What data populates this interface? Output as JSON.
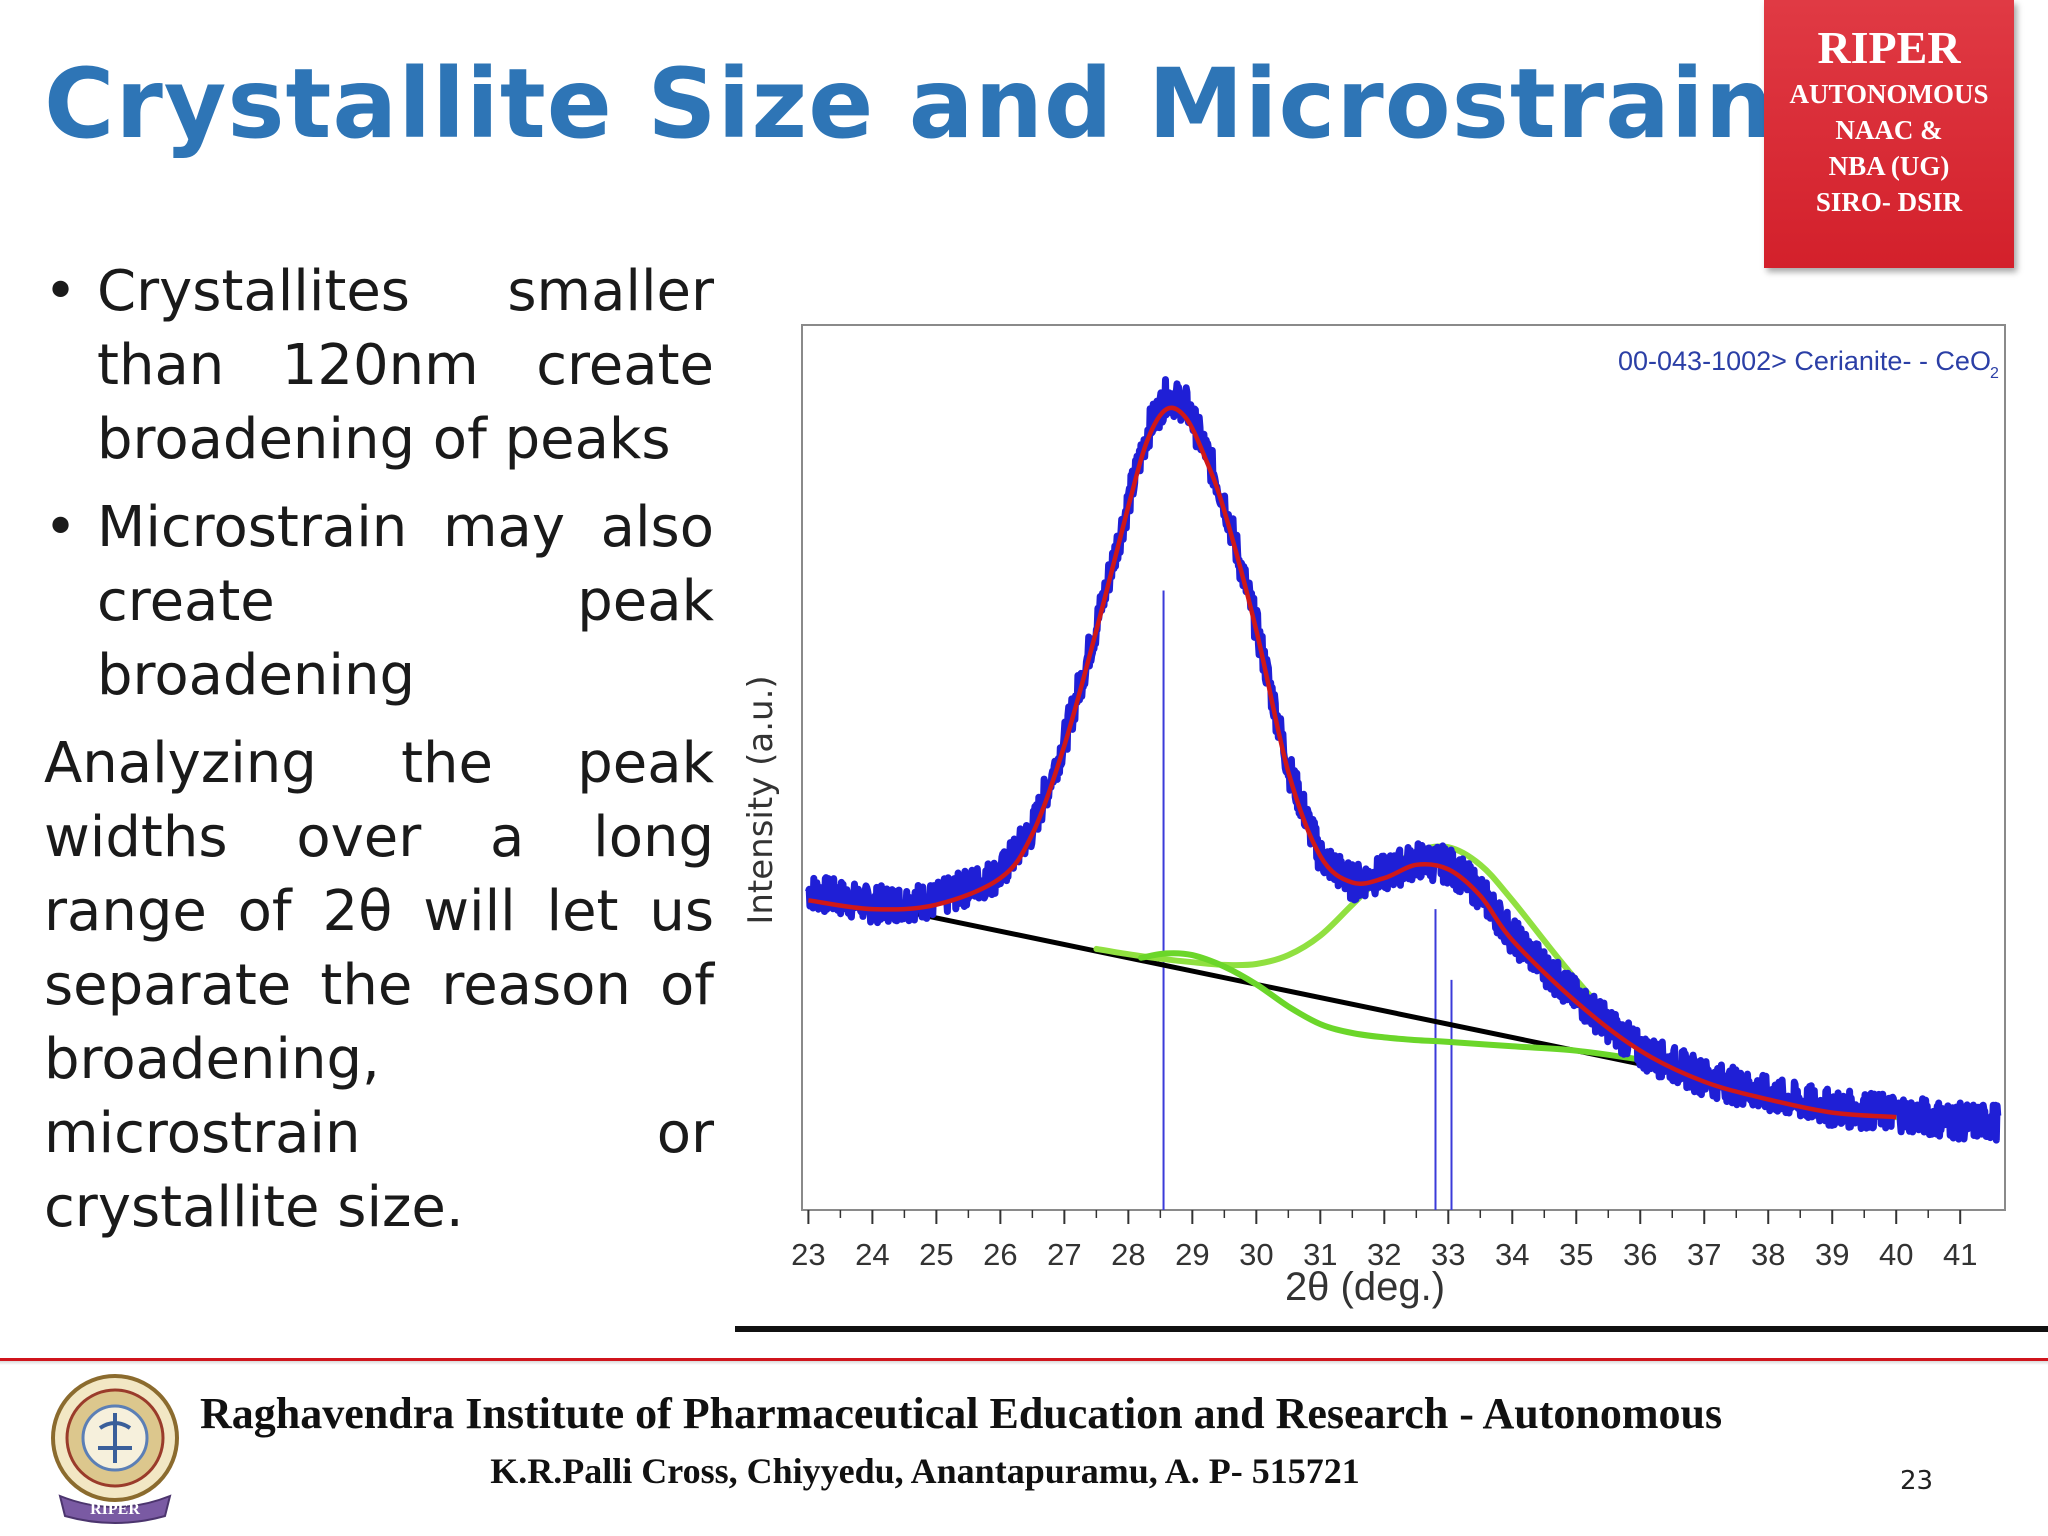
{
  "slide": {
    "title": "Crystallite Size and Microstrain",
    "badge": {
      "title": "RIPER",
      "lines": [
        "AUTONOMOUS",
        "NAAC &",
        "NBA (UG)",
        "SIRO- DSIR"
      ]
    },
    "bullets": [
      "Crystallites smaller than 120nm create broadening of peaks",
      "Microstrain may also create peak broadening"
    ],
    "paragraph": "Analyzing the peak widths over a long range of 2θ will let us separate the reason of broadening, microstrain or crystallite size.",
    "bullet_symbol": "•"
  },
  "chart_data": {
    "type": "line",
    "xlabel": "2θ (deg.)",
    "ylabel": "Intensity (a.u.)",
    "xlim": [
      22.9,
      41.7
    ],
    "ylim": [
      0,
      100
    ],
    "xticks": [
      23,
      24,
      25,
      26,
      27,
      28,
      29,
      30,
      31,
      32,
      33,
      34,
      35,
      36,
      37,
      38,
      39,
      40,
      41
    ],
    "annotation": "00-043-1002> Cerianite- - CeO",
    "annotation_subscript": "2",
    "grid": false,
    "series": [
      {
        "kind": "observed",
        "color": "#1f1fd6",
        "x": [
          23,
          24,
          25,
          26,
          26.5,
          27,
          27.5,
          28,
          28.3,
          28.6,
          28.9,
          29.2,
          29.5,
          30,
          30.5,
          31,
          31.5,
          32,
          32.5,
          33,
          33.5,
          34,
          35,
          36,
          37,
          38,
          39,
          40,
          41,
          41.6
        ],
        "values": [
          36,
          34.5,
          35,
          38,
          43,
          53,
          66,
          80,
          88,
          92,
          91,
          86,
          80,
          66,
          50,
          40,
          37,
          38,
          39.5,
          39,
          36,
          31,
          24,
          18,
          15,
          13,
          11.5,
          11,
          10,
          10
        ]
      },
      {
        "kind": "fit",
        "color": "#d01818",
        "x": [
          23,
          24,
          25,
          26,
          26.5,
          27,
          27.5,
          28,
          28.3,
          28.6,
          28.9,
          29.2,
          29.5,
          30,
          30.5,
          31,
          31.5,
          32,
          32.5,
          33,
          33.5,
          34,
          35,
          36,
          37,
          38,
          39,
          40
        ],
        "values": [
          35,
          34,
          34.5,
          37.5,
          42.5,
          52.5,
          65.5,
          79.5,
          87,
          90.5,
          89.5,
          85,
          79,
          65.5,
          49.5,
          40,
          37,
          37.5,
          39,
          38.5,
          35.5,
          30.5,
          23.5,
          18,
          14.5,
          12.5,
          11,
          10.5
        ]
      },
      {
        "kind": "peak_1",
        "color": "#6bd62a",
        "x": [
          28.2,
          28.6,
          29,
          29.5,
          30,
          30.5,
          31,
          31.5,
          32,
          32.5,
          33,
          34,
          35,
          36
        ],
        "values": [
          28.5,
          29,
          28.8,
          27.5,
          25.5,
          23,
          21,
          20,
          19.5,
          19.2,
          19,
          18.5,
          18,
          17
        ]
      },
      {
        "kind": "peak_2",
        "color": "#90e040",
        "x": [
          27.5,
          28,
          28.5,
          29,
          29.5,
          30,
          30.5,
          31,
          31.5,
          32,
          32.5,
          33,
          33.5,
          34,
          35,
          36,
          37,
          38,
          39,
          40
        ],
        "values": [
          29.5,
          28.9,
          28.4,
          28,
          27.7,
          27.8,
          28.8,
          31,
          34.5,
          38,
          40.5,
          41,
          39,
          35,
          26,
          18.5,
          15,
          13,
          11.5,
          10.5
        ]
      },
      {
        "kind": "background",
        "color": "#000000",
        "x": [
          23,
          36
        ],
        "values": [
          36,
          16.5
        ]
      }
    ],
    "reference_lines": {
      "color": "#3b3bd9",
      "positions": [
        28.55,
        32.8,
        33.05
      ],
      "heights": [
        70,
        34,
        26
      ]
    }
  },
  "footer": {
    "institution": "Raghavendra Institute of Pharmaceutical Education and Research - Autonomous",
    "address": "K.R.Palli Cross, Chiyyedu, Anantapuramu, A. P- 515721",
    "page_number": "23",
    "logo_text": "RIPER"
  }
}
